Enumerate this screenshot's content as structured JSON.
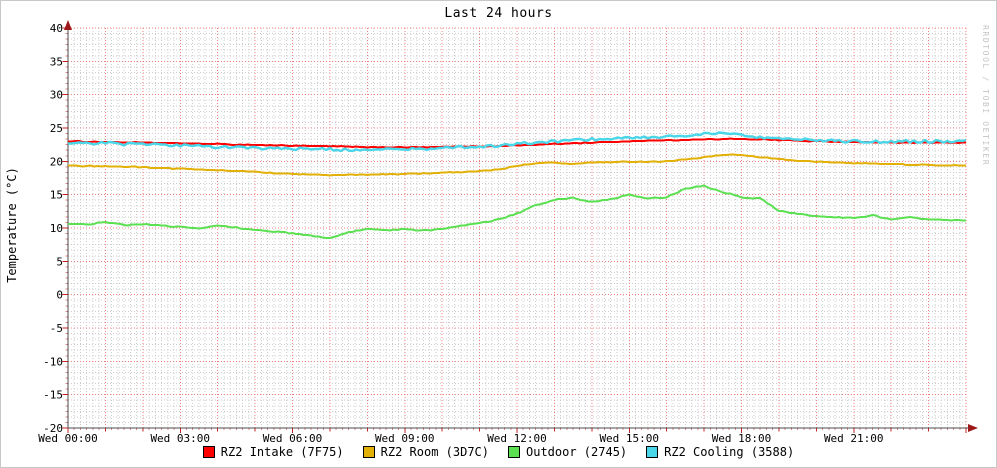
{
  "title": "Last 24 hours",
  "watermark": "RRDTOOL / TOBI OETIKER",
  "style": {
    "axis_color": "#4d4d4d",
    "arrow_color": "#9e1a1a",
    "tick_major_color": "#cc2020",
    "tick_minor_color": "#e08888",
    "text_color": "#000000",
    "watermark_color": "#c4c4c4",
    "background": "#ffffff"
  },
  "chart_data": {
    "type": "line",
    "title": "Last 24 hours",
    "xlabel": "",
    "ylabel": "Temperature (°C)",
    "ylim": [
      -20,
      40
    ],
    "y_ticks": [
      40,
      35,
      30,
      25,
      20,
      15,
      10,
      5,
      0,
      -5,
      -10,
      -15,
      -20
    ],
    "x_hours": 24,
    "x_step_h": 0.5,
    "x_tick_labels": [
      {
        "hour": 0,
        "label": "Wed 00:00"
      },
      {
        "hour": 3,
        "label": "Wed 03:00"
      },
      {
        "hour": 6,
        "label": "Wed 06:00"
      },
      {
        "hour": 9,
        "label": "Wed 09:00"
      },
      {
        "hour": 12,
        "label": "Wed 12:00"
      },
      {
        "hour": 15,
        "label": "Wed 15:00"
      },
      {
        "hour": 18,
        "label": "Wed 18:00"
      },
      {
        "hour": 21,
        "label": "Wed 21:00"
      }
    ],
    "grid": {
      "major_color": "#f08080",
      "minor_color": "#cccccc",
      "y_major_step": 5,
      "y_minor_divisions": 6,
      "x_major_step_h": 1,
      "x_minor_divisions": 6
    },
    "legend_position": "bottom",
    "series": [
      {
        "name": "RZ2 Intake (7F75)",
        "color": "#ff0000",
        "width": 2,
        "jitter": 0.05,
        "values": [
          23.0,
          22.95,
          22.9,
          22.85,
          22.8,
          22.75,
          22.7,
          22.65,
          22.6,
          22.5,
          22.45,
          22.4,
          22.35,
          22.3,
          22.25,
          22.2,
          22.15,
          22.1,
          22.1,
          22.1,
          22.15,
          22.2,
          22.25,
          22.3,
          22.4,
          22.5,
          22.6,
          22.7,
          22.8,
          22.9,
          23.0,
          23.1,
          23.15,
          23.2,
          23.3,
          23.35,
          23.35,
          23.3,
          23.2,
          23.1,
          23.0,
          22.95,
          22.9,
          22.85,
          22.8,
          22.8,
          22.8,
          22.8,
          22.8
        ]
      },
      {
        "name": "RZ2 Room (3D7C)",
        "color": "#e2b007",
        "width": 2,
        "jitter": 0.06,
        "values": [
          19.35,
          19.3,
          19.25,
          19.2,
          19.1,
          19.0,
          18.9,
          18.8,
          18.65,
          18.55,
          18.4,
          18.25,
          18.1,
          18.0,
          17.95,
          17.95,
          18.0,
          18.05,
          18.1,
          18.2,
          18.3,
          18.4,
          18.55,
          18.75,
          19.3,
          19.7,
          19.8,
          19.6,
          19.85,
          19.9,
          19.95,
          19.9,
          20.0,
          20.3,
          20.6,
          21.0,
          20.9,
          20.6,
          20.35,
          20.1,
          19.95,
          19.85,
          19.75,
          19.65,
          19.6,
          19.5,
          19.45,
          19.4,
          19.35
        ]
      },
      {
        "name": "Outdoor (2745)",
        "color": "#5be052",
        "width": 2,
        "jitter": 0.08,
        "values": [
          10.6,
          10.5,
          10.9,
          10.4,
          10.6,
          10.3,
          10.2,
          9.9,
          10.4,
          10.1,
          9.7,
          9.5,
          9.2,
          8.9,
          8.5,
          9.3,
          9.9,
          9.6,
          9.8,
          9.6,
          9.9,
          10.4,
          10.7,
          11.3,
          12.2,
          13.4,
          14.2,
          14.5,
          13.9,
          14.3,
          15.0,
          14.4,
          14.6,
          15.9,
          16.3,
          15.4,
          14.6,
          14.4,
          12.6,
          12.1,
          11.8,
          11.6,
          11.5,
          11.9,
          11.3,
          11.6,
          11.3,
          11.2,
          11.1
        ]
      },
      {
        "name": "RZ2 Cooling (3588)",
        "color": "#49d6e8",
        "width": 2.4,
        "jitter": 0.2,
        "values": [
          22.85,
          22.8,
          22.7,
          22.6,
          22.55,
          22.5,
          22.4,
          22.3,
          22.2,
          22.1,
          22.0,
          21.95,
          21.9,
          21.85,
          21.8,
          21.75,
          21.75,
          21.8,
          21.85,
          21.9,
          22.0,
          22.1,
          22.2,
          22.35,
          22.6,
          22.8,
          23.0,
          23.2,
          23.3,
          23.45,
          23.55,
          23.6,
          23.7,
          23.9,
          24.1,
          24.2,
          23.9,
          23.6,
          23.4,
          23.3,
          23.2,
          23.1,
          23.0,
          22.95,
          22.95,
          23.0,
          23.0,
          23.0,
          23.05
        ]
      }
    ]
  }
}
